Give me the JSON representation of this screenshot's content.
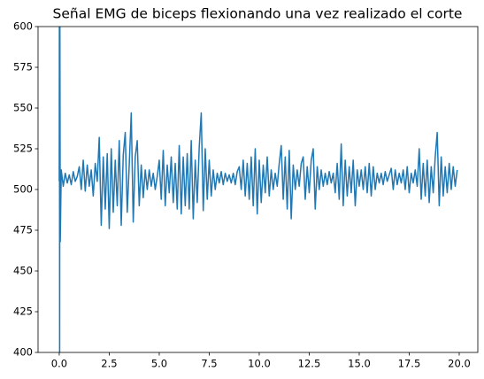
{
  "chart_data": {
    "type": "line",
    "title": "Señal EMG de biceps flexionando una vez realizado el corte",
    "x": [
      0,
      0.01,
      0.02,
      0.03,
      0.05,
      0.1,
      0.2,
      0.3,
      0.4,
      0.5,
      0.6,
      0.7,
      0.8,
      0.9,
      1.0,
      1.1,
      1.2,
      1.3,
      1.4,
      1.5,
      1.6,
      1.7,
      1.8,
      1.9,
      2.0,
      2.1,
      2.2,
      2.3,
      2.4,
      2.5,
      2.6,
      2.7,
      2.8,
      2.9,
      3.0,
      3.1,
      3.2,
      3.3,
      3.4,
      3.5,
      3.6,
      3.7,
      3.8,
      3.9,
      4.0,
      4.1,
      4.2,
      4.3,
      4.4,
      4.5,
      4.6,
      4.7,
      4.8,
      4.9,
      5.0,
      5.1,
      5.2,
      5.3,
      5.4,
      5.5,
      5.6,
      5.7,
      5.8,
      5.9,
      6.0,
      6.1,
      6.2,
      6.3,
      6.4,
      6.5,
      6.6,
      6.7,
      6.8,
      6.9,
      7.0,
      7.1,
      7.2,
      7.3,
      7.4,
      7.5,
      7.6,
      7.7,
      7.8,
      7.9,
      8.0,
      8.1,
      8.2,
      8.3,
      8.4,
      8.5,
      8.6,
      8.7,
      8.8,
      8.9,
      9.0,
      9.1,
      9.2,
      9.3,
      9.4,
      9.5,
      9.6,
      9.7,
      9.8,
      9.9,
      10.0,
      10.1,
      10.2,
      10.3,
      10.4,
      10.5,
      10.6,
      10.7,
      10.8,
      10.9,
      11.0,
      11.1,
      11.2,
      11.3,
      11.4,
      11.5,
      11.6,
      11.7,
      11.8,
      11.9,
      12.0,
      12.1,
      12.2,
      12.3,
      12.4,
      12.5,
      12.6,
      12.7,
      12.8,
      12.9,
      13.0,
      13.1,
      13.2,
      13.3,
      13.4,
      13.5,
      13.6,
      13.7,
      13.8,
      13.9,
      14.0,
      14.1,
      14.2,
      14.3,
      14.4,
      14.5,
      14.6,
      14.7,
      14.8,
      14.9,
      15.0,
      15.1,
      15.2,
      15.3,
      15.4,
      15.5,
      15.6,
      15.7,
      15.8,
      15.9,
      16.0,
      16.1,
      16.2,
      16.3,
      16.4,
      16.5,
      16.6,
      16.7,
      16.8,
      16.9,
      17.0,
      17.1,
      17.2,
      17.3,
      17.4,
      17.5,
      17.6,
      17.7,
      17.8,
      17.9,
      18.0,
      18.1,
      18.2,
      18.3,
      18.4,
      18.5,
      18.6,
      18.7,
      18.8,
      18.9,
      19.0,
      19.1,
      19.2,
      19.3,
      19.4,
      19.5,
      19.6,
      19.7,
      19.8,
      19.9
    ],
    "series": [
      {
        "color": "#1f77b4",
        "values": [
          505,
          650,
          380,
          620,
          468,
          512,
          502,
          510,
          504,
          509,
          503,
          511,
          505,
          508,
          514,
          500,
          518,
          499,
          515,
          502,
          512,
          496,
          516,
          505,
          532,
          478,
          520,
          488,
          522,
          476,
          525,
          486,
          518,
          490,
          530,
          478,
          521,
          535,
          486,
          515,
          547,
          480,
          520,
          530,
          490,
          515,
          495,
          512,
          500,
          512,
          502,
          510,
          500,
          508,
          518,
          494,
          524,
          490,
          515,
          498,
          520,
          492,
          516,
          488,
          527,
          485,
          520,
          490,
          522,
          488,
          530,
          482,
          518,
          492,
          526,
          547,
          487,
          525,
          494,
          518,
          496,
          512,
          500,
          510,
          504,
          511,
          503,
          510,
          505,
          509,
          504,
          510,
          503,
          511,
          514,
          500,
          518,
          496,
          516,
          494,
          520,
          490,
          525,
          485,
          518,
          492,
          515,
          498,
          520,
          496,
          512,
          500,
          510,
          502,
          516,
          527,
          494,
          520,
          488,
          524,
          482,
          515,
          500,
          512,
          502,
          516,
          520,
          494,
          514,
          498,
          518,
          525,
          488,
          514,
          500,
          512,
          502,
          510,
          503,
          511,
          504,
          510,
          498,
          516,
          494,
          528,
          490,
          518,
          496,
          514,
          498,
          518,
          490,
          512,
          502,
          512,
          500,
          514,
          498,
          516,
          496,
          514,
          500,
          510,
          504,
          510,
          503,
          511,
          505,
          509,
          513,
          500,
          512,
          503,
          510,
          504,
          512,
          500,
          514,
          498,
          510,
          504,
          512,
          502,
          525,
          494,
          516,
          496,
          518,
          492,
          514,
          498,
          520,
          535,
          490,
          520,
          496,
          514,
          498,
          516,
          500,
          514,
          502,
          512
        ]
      }
    ],
    "xlim": [
      -1.06,
      20.93
    ],
    "ylim": [
      400,
      600
    ],
    "xticks": [
      {
        "value": 0,
        "label": "0.0"
      },
      {
        "value": 2.5,
        "label": "2.5"
      },
      {
        "value": 5,
        "label": "5.0"
      },
      {
        "value": 7.5,
        "label": "7.5"
      },
      {
        "value": 10,
        "label": "10.0"
      },
      {
        "value": 12.5,
        "label": "12.5"
      },
      {
        "value": 15,
        "label": "15.0"
      },
      {
        "value": 17.5,
        "label": "17.5"
      },
      {
        "value": 20,
        "label": "20.0"
      }
    ],
    "yticks": [
      400,
      425,
      450,
      475,
      500,
      525,
      550,
      575,
      600
    ]
  }
}
